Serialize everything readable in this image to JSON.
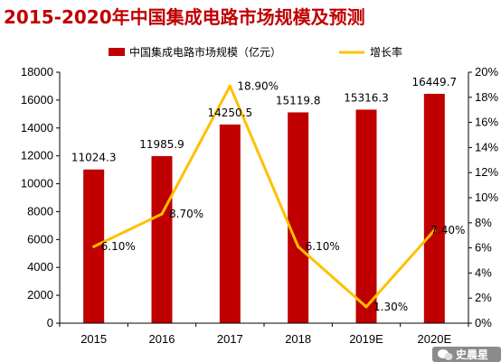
{
  "title": "2015-2020年中国集成电路市场规模及预测",
  "watermark": {
    "text": "史晨星",
    "icon": "wechat-icon"
  },
  "colors": {
    "bar": "#c00000",
    "line": "#ffc000",
    "title": "#c00000"
  },
  "chart_data": {
    "type": "bar",
    "categories": [
      "2015",
      "2016",
      "2017",
      "2018",
      "2019E",
      "2020E"
    ],
    "series": [
      {
        "name": "中国集成电路市场规模（亿元）",
        "type": "bar",
        "axis": "left",
        "values": [
          11024.3,
          11985.9,
          14250.5,
          15119.8,
          15316.3,
          16449.7
        ],
        "labels": [
          "11024.3",
          "11985.9",
          "14250.5",
          "15119.8",
          "15316.3",
          "16449.7"
        ]
      },
      {
        "name": "增长率",
        "type": "line",
        "axis": "right",
        "values": [
          6.1,
          8.7,
          18.9,
          6.1,
          1.3,
          7.4
        ],
        "labels": [
          "6.10%",
          "8.70%",
          "18.90%",
          "6.10%",
          "1.30%",
          "7.40%"
        ]
      }
    ],
    "y_left": {
      "lim": [
        0,
        18000
      ],
      "ticks": [
        "0",
        "2000",
        "4000",
        "6000",
        "8000",
        "10000",
        "12000",
        "14000",
        "16000",
        "18000"
      ]
    },
    "y_right": {
      "lim": [
        0,
        20
      ],
      "ticks": [
        "0%",
        "2%",
        "4%",
        "6%",
        "8%",
        "10%",
        "12%",
        "14%",
        "16%",
        "18%",
        "20%"
      ]
    },
    "legend_position": "top",
    "grid": false
  }
}
